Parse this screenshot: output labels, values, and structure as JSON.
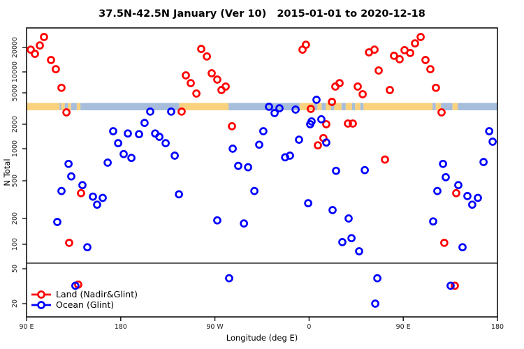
{
  "title": "37.5N-42.5N January (Ver 10)   2015-01-01 to 2020-12-18",
  "axes": {
    "y_label": "N Total",
    "x_label": "Longitude (deg E)",
    "y_tick_labels": [
      "20000",
      "10000",
      "5000",
      "2000",
      "1000",
      "500",
      "200",
      "100",
      "50",
      "20"
    ],
    "y_tick_values": [
      20000,
      10000,
      5000,
      2000,
      1000,
      500,
      200,
      100,
      50,
      20
    ],
    "x_tick_labels": [
      "90 E",
      "180",
      "90 W",
      "0",
      "90 E",
      "180"
    ],
    "x_tick_axis_degrees": [
      90,
      180,
      270,
      360,
      450,
      540
    ]
  },
  "legend": {
    "items": [
      {
        "label": "Land (Nadir&Glint)",
        "color_key": "land"
      },
      {
        "label": "Ocean (Glint)",
        "color_key": "ocean"
      }
    ]
  },
  "colors": {
    "land": "#ff0000",
    "ocean": "#0000ff",
    "band_land": "#fad27e",
    "band_ocean": "#a6bddb",
    "axis": "#000000",
    "tick_text": "#222222"
  },
  "chart_data": {
    "type": "scatter",
    "title": "37.5N-42.5N January (Ver 10)   2015-01-01 to 2020-12-18",
    "xlabel": "Longitude (deg E)",
    "ylabel": "N Total",
    "x_axis_note": "longitude in deg E wrapped: axis runs 90E -> 180 -> 90W -> 0 -> 90E -> 180 (stored as 90..540)",
    "y_scale": "log",
    "xlim": [
      90,
      540
    ],
    "ylim": [
      15,
      30000
    ],
    "separator_line_y_value": 55,
    "band": {
      "description": "land/ocean surface-type strip at N ~ 4000",
      "segments": [
        [
          90,
          121.5,
          "land"
        ],
        [
          121.5,
          123,
          "ocean"
        ],
        [
          123,
          126.5,
          "land"
        ],
        [
          126.5,
          129.5,
          "ocean"
        ],
        [
          129.5,
          132.5,
          "land"
        ],
        [
          132.5,
          138,
          "ocean"
        ],
        [
          138,
          141.5,
          "land"
        ],
        [
          141.5,
          236,
          "ocean"
        ],
        [
          236,
          283,
          "land"
        ],
        [
          283,
          351,
          "ocean"
        ],
        [
          351,
          365,
          "land"
        ],
        [
          365,
          368,
          "ocean"
        ],
        [
          368,
          372,
          "land"
        ],
        [
          372,
          376,
          "ocean"
        ],
        [
          376,
          381,
          "land"
        ],
        [
          381,
          384,
          "ocean"
        ],
        [
          384,
          391,
          "land"
        ],
        [
          391,
          395,
          "ocean"
        ],
        [
          395,
          401,
          "land"
        ],
        [
          401,
          404,
          "ocean"
        ],
        [
          404,
          409,
          "land"
        ],
        [
          409,
          412,
          "ocean"
        ],
        [
          412,
          478,
          "land"
        ],
        [
          478,
          481,
          "ocean"
        ],
        [
          481,
          486,
          "land"
        ],
        [
          486,
          497,
          "ocean"
        ],
        [
          497,
          502,
          "land"
        ],
        [
          502,
          540,
          "ocean"
        ]
      ]
    },
    "series": [
      {
        "name": "Land (Nadir&Glint)",
        "color_key": "land",
        "points": [
          [
            94,
            18800
          ],
          [
            98,
            16700
          ],
          [
            102.7,
            21200
          ],
          [
            106.7,
            26900
          ],
          [
            113.4,
            14000
          ],
          [
            118,
            10800
          ],
          [
            123.4,
            5900
          ],
          [
            128.1,
            2830
          ],
          [
            238.2,
            2890
          ],
          [
            242.2,
            8900
          ],
          [
            246.9,
            6900
          ],
          [
            252.3,
            4900
          ],
          [
            256.9,
            19200
          ],
          [
            262.3,
            15500
          ],
          [
            266.9,
            9550
          ],
          [
            272.3,
            7760
          ],
          [
            276.3,
            5480
          ],
          [
            280.3,
            6160
          ],
          [
            286.3,
            1890
          ],
          [
            353.7,
            18800
          ],
          [
            357,
            21600
          ],
          [
            361.7,
            3130
          ],
          [
            368.4,
            1100
          ],
          [
            373.7,
            1350
          ],
          [
            376.4,
            2000
          ],
          [
            381.8,
            3840
          ],
          [
            385.1,
            6160
          ],
          [
            389.1,
            6900
          ],
          [
            397.1,
            2040
          ],
          [
            401.8,
            2040
          ],
          [
            406.5,
            6160
          ],
          [
            411.2,
            4800
          ],
          [
            417.2,
            17400
          ],
          [
            422.5,
            18800
          ],
          [
            426.5,
            10400
          ],
          [
            432.5,
            790
          ],
          [
            437.2,
            5480
          ],
          [
            441.2,
            15800
          ],
          [
            446.5,
            14300
          ],
          [
            451.2,
            18500
          ],
          [
            456.6,
            17100
          ],
          [
            461.2,
            22500
          ],
          [
            466.6,
            26900
          ],
          [
            471.2,
            14000
          ],
          [
            475.9,
            10800
          ],
          [
            481.2,
            5900
          ],
          [
            486.6,
            2830
          ],
          [
            489.2,
            104
          ],
          [
            500.6,
            370
          ],
          [
            142.1,
            370
          ],
          [
            130.7,
            104
          ],
          [
            139.4,
            33
          ],
          [
            499.3,
            32
          ]
        ]
      },
      {
        "name": "Ocean (Glint)",
        "color_key": "ocean",
        "points": [
          [
            208.2,
            2890
          ],
          [
            228.2,
            2890
          ],
          [
            202.8,
            2080
          ],
          [
            321.7,
            3330
          ],
          [
            327,
            2770
          ],
          [
            331.7,
            3190
          ],
          [
            347.1,
            3070
          ],
          [
            367.1,
            4080
          ],
          [
            371.7,
            2310
          ],
          [
            362.4,
            2170
          ],
          [
            172.8,
            1640
          ],
          [
            186.8,
            1540
          ],
          [
            197.5,
            1510
          ],
          [
            212.9,
            1540
          ],
          [
            216.9,
            1400
          ],
          [
            177.5,
            1170
          ],
          [
            222.9,
            1170
          ],
          [
            182.8,
            890
          ],
          [
            190.2,
            820
          ],
          [
            231.6,
            860
          ],
          [
            167.5,
            740
          ],
          [
            130.1,
            720
          ],
          [
            132.7,
            550
          ],
          [
            143.4,
            450
          ],
          [
            123.4,
            390
          ],
          [
            153.4,
            340
          ],
          [
            162.8,
            330
          ],
          [
            157.4,
            280
          ],
          [
            235.6,
            360
          ],
          [
            119.4,
            182
          ],
          [
            316.3,
            1640
          ],
          [
            361.1,
            2000
          ],
          [
            312.3,
            1120
          ],
          [
            287,
            1000
          ],
          [
            350.4,
            1290
          ],
          [
            376.4,
            1190
          ],
          [
            337.1,
            830
          ],
          [
            341.7,
            860
          ],
          [
            292.3,
            690
          ],
          [
            301.7,
            670
          ],
          [
            385.8,
            620
          ],
          [
            307.7,
            390
          ],
          [
            359.1,
            290
          ],
          [
            382.4,
            245
          ],
          [
            272.3,
            190
          ],
          [
            297.7,
            175
          ],
          [
            532.1,
            1640
          ],
          [
            535.4,
            1220
          ],
          [
            413.2,
            630
          ],
          [
            488,
            720
          ],
          [
            526.7,
            750
          ],
          [
            490.6,
            540
          ],
          [
            502.6,
            450
          ],
          [
            482.6,
            390
          ],
          [
            511.3,
            345
          ],
          [
            521.3,
            330
          ],
          [
            515.9,
            280
          ],
          [
            397.8,
            200
          ],
          [
            478.6,
            185
          ],
          [
            148.1,
            92
          ],
          [
            391.8,
            106
          ],
          [
            400.5,
            118
          ],
          [
            407.8,
            82
          ],
          [
            506.6,
            92
          ],
          [
            425.2,
            39
          ],
          [
            136.7,
            32
          ],
          [
            495.3,
            32
          ],
          [
            423.2,
            20
          ],
          [
            283.6,
            39
          ]
        ]
      }
    ]
  }
}
